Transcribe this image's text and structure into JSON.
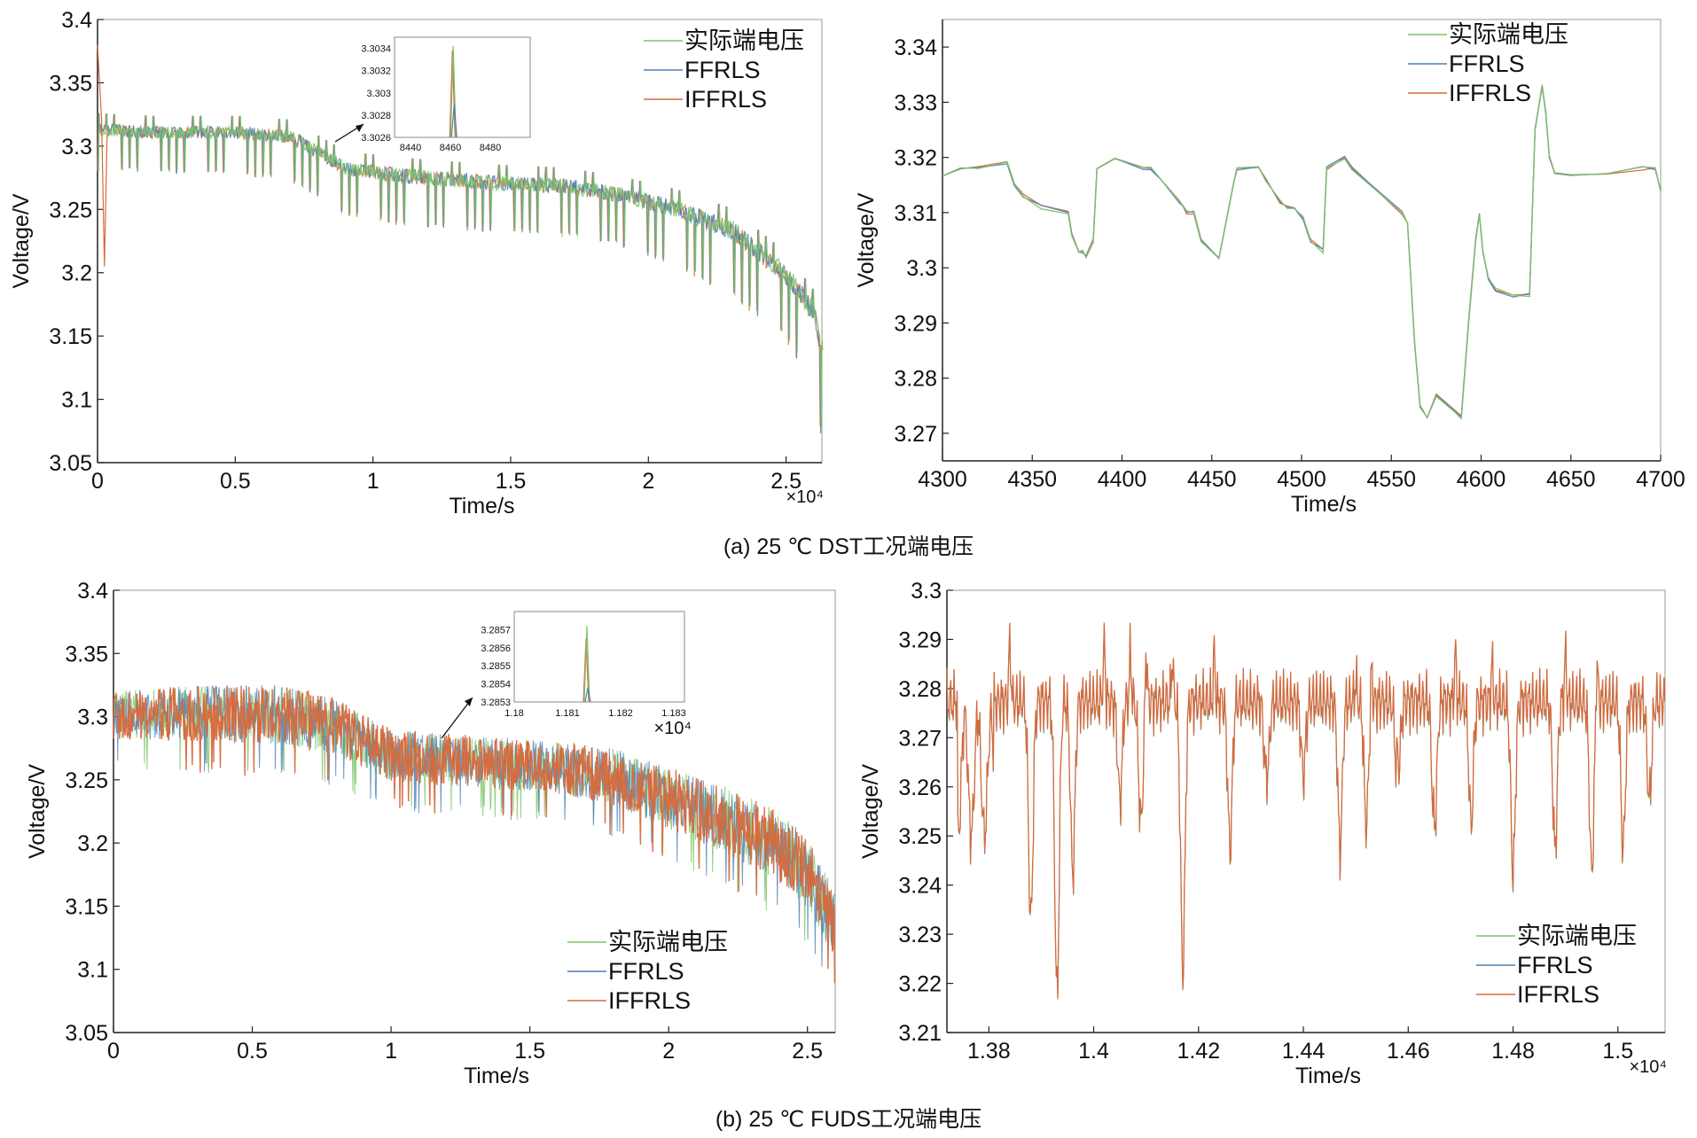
{
  "colors": {
    "measured": "#7cc46a",
    "ffrls": "#4f7fb6",
    "iffrls": "#d7693a",
    "axis": "#222222",
    "frame": "#999999"
  },
  "captions": {
    "a": "(a) 25 ℃ DST工况端电压",
    "b": "(b) 25 ℃ FUDS工况端电压"
  },
  "legend_labels": [
    "实际端电压",
    "FFRLS",
    "IFFRLS"
  ],
  "chart_data": [
    {
      "id": "dst-full",
      "type": "line",
      "xlabel": "Time/s",
      "ylabel": "Voltage/V",
      "xlim": [
        0,
        26300
      ],
      "ylim": [
        3.05,
        3.4
      ],
      "x_multiplier": "×10⁴",
      "x_ticks": [
        0,
        5000,
        10000,
        15000,
        20000,
        25000
      ],
      "x_tick_labels": [
        "0",
        "0.5",
        "1",
        "1.5",
        "2",
        "2.5"
      ],
      "y_ticks": [
        3.05,
        3.1,
        3.15,
        3.2,
        3.25,
        3.3,
        3.35,
        3.4
      ],
      "y_tick_labels": [
        "3.05",
        "3.1",
        "3.15",
        "3.2",
        "3.25",
        "3.3",
        "3.35",
        "3.4"
      ],
      "legend": [
        "实际端电压",
        "FFRLS",
        "IFFRLS"
      ],
      "legend_position": "top-right",
      "series_envelope": {
        "x": [
          0,
          2000,
          5000,
          7000,
          9000,
          11000,
          14000,
          17000,
          19000,
          21000,
          23000,
          25000,
          26000,
          26300
        ],
        "upper": [
          3.32,
          3.318,
          3.318,
          3.315,
          3.29,
          3.285,
          3.28,
          3.277,
          3.27,
          3.26,
          3.245,
          3.21,
          3.18,
          3.15
        ],
        "lower": [
          3.28,
          3.278,
          3.277,
          3.272,
          3.245,
          3.237,
          3.232,
          3.228,
          3.22,
          3.205,
          3.18,
          3.145,
          3.11,
          3.06
        ]
      },
      "inset": {
        "xlim": [
          8432,
          8500
        ],
        "ylim": [
          3.3026,
          3.3035
        ],
        "x_ticks": [
          8440,
          8460,
          8480
        ],
        "x_tick_labels": [
          "8440",
          "8460",
          "8480"
        ],
        "y_ticks": [
          3.3026,
          3.3028,
          3.303,
          3.3032,
          3.3034
        ],
        "y_tick_labels": [
          "3.3026",
          "3.3028",
          "3.303",
          "3.3032",
          "3.3034"
        ]
      }
    },
    {
      "id": "dst-zoom",
      "type": "line",
      "xlabel": "Time/s",
      "ylabel": "Voltage/V",
      "xlim": [
        4300,
        4700
      ],
      "ylim": [
        3.265,
        3.345
      ],
      "x_ticks": [
        4300,
        4350,
        4400,
        4450,
        4500,
        4550,
        4600,
        4650,
        4700
      ],
      "x_tick_labels": [
        "4300",
        "4350",
        "4400",
        "4450",
        "4500",
        "4550",
        "4600",
        "4650",
        "4700"
      ],
      "y_ticks": [
        3.27,
        3.28,
        3.29,
        3.3,
        3.31,
        3.32,
        3.33,
        3.34
      ],
      "y_tick_labels": [
        "3.27",
        "3.28",
        "3.29",
        "3.3",
        "3.31",
        "3.32",
        "3.33",
        "3.34"
      ],
      "legend": [
        "实际端电压",
        "FFRLS",
        "IFFRLS"
      ],
      "legend_position": "top-right",
      "series": [
        {
          "name": "实际端电压",
          "x": [
            4300,
            4310,
            4320,
            4336,
            4340,
            4345,
            4355,
            4370,
            4372,
            4376,
            4378,
            4380,
            4384,
            4386,
            4396,
            4412,
            4416,
            4422,
            4432,
            4434,
            4436,
            4440,
            4444,
            4454,
            4462,
            4464,
            4476,
            4480,
            4488,
            4492,
            4496,
            4501,
            4505,
            4512,
            4514,
            4524,
            4528,
            4556,
            4559,
            4563,
            4566,
            4570,
            4575,
            4585,
            4589,
            4593,
            4597,
            4599,
            4601,
            4604,
            4608,
            4618,
            4627,
            4630,
            4634,
            4636,
            4638,
            4641,
            4650,
            4670,
            4690,
            4697,
            4700
          ],
          "y": [
            3.317,
            3.318,
            3.318,
            3.319,
            3.315,
            3.313,
            3.311,
            3.31,
            3.306,
            3.303,
            3.303,
            3.302,
            3.305,
            3.318,
            3.32,
            3.318,
            3.318,
            3.316,
            3.312,
            3.311,
            3.31,
            3.31,
            3.305,
            3.302,
            3.315,
            3.318,
            3.318,
            3.316,
            3.312,
            3.311,
            3.311,
            3.309,
            3.305,
            3.303,
            3.318,
            3.32,
            3.318,
            3.31,
            3.308,
            3.286,
            3.275,
            3.273,
            3.277,
            3.274,
            3.273,
            3.29,
            3.305,
            3.31,
            3.303,
            3.298,
            3.296,
            3.295,
            3.295,
            3.325,
            3.333,
            3.328,
            3.32,
            3.317,
            3.317,
            3.317,
            3.318,
            3.318,
            3.314
          ]
        },
        {
          "name": "FFRLS",
          "x": [
            4300,
            4310,
            4320,
            4336,
            4340,
            4345,
            4355,
            4370,
            4372,
            4376,
            4378,
            4380,
            4384,
            4386,
            4396,
            4412,
            4416,
            4422,
            4432,
            4434,
            4436,
            4440,
            4444,
            4454,
            4462,
            4464,
            4476,
            4480,
            4488,
            4492,
            4496,
            4501,
            4505,
            4512,
            4514,
            4524,
            4528,
            4556,
            4559,
            4563,
            4566,
            4570,
            4575,
            4585,
            4589,
            4593,
            4597,
            4599,
            4601,
            4604,
            4608,
            4618,
            4627,
            4630,
            4634,
            4636,
            4638,
            4641,
            4650,
            4670,
            4690,
            4697,
            4700
          ],
          "y": [
            3.317,
            3.318,
            3.318,
            3.319,
            3.315,
            3.313,
            3.311,
            3.31,
            3.306,
            3.303,
            3.303,
            3.302,
            3.305,
            3.318,
            3.32,
            3.318,
            3.318,
            3.316,
            3.312,
            3.311,
            3.31,
            3.31,
            3.305,
            3.302,
            3.315,
            3.318,
            3.318,
            3.316,
            3.312,
            3.311,
            3.311,
            3.309,
            3.305,
            3.303,
            3.318,
            3.32,
            3.318,
            3.31,
            3.308,
            3.286,
            3.275,
            3.273,
            3.277,
            3.274,
            3.273,
            3.29,
            3.305,
            3.31,
            3.303,
            3.298,
            3.296,
            3.295,
            3.295,
            3.325,
            3.333,
            3.328,
            3.32,
            3.317,
            3.317,
            3.317,
            3.318,
            3.318,
            3.314
          ]
        },
        {
          "name": "IFFRLS",
          "x": [
            4300,
            4310,
            4320,
            4336,
            4340,
            4345,
            4355,
            4370,
            4372,
            4376,
            4378,
            4380,
            4384,
            4386,
            4396,
            4412,
            4416,
            4422,
            4432,
            4434,
            4436,
            4440,
            4444,
            4454,
            4462,
            4464,
            4476,
            4480,
            4488,
            4492,
            4496,
            4501,
            4505,
            4512,
            4514,
            4524,
            4528,
            4556,
            4559,
            4563,
            4566,
            4570,
            4575,
            4585,
            4589,
            4593,
            4597,
            4599,
            4601,
            4604,
            4608,
            4618,
            4627,
            4630,
            4634,
            4636,
            4638,
            4641,
            4650,
            4670,
            4690,
            4697,
            4700
          ],
          "y": [
            3.317,
            3.318,
            3.318,
            3.319,
            3.315,
            3.313,
            3.311,
            3.31,
            3.306,
            3.303,
            3.303,
            3.302,
            3.305,
            3.318,
            3.32,
            3.318,
            3.318,
            3.316,
            3.312,
            3.311,
            3.31,
            3.31,
            3.305,
            3.302,
            3.315,
            3.318,
            3.318,
            3.316,
            3.312,
            3.311,
            3.311,
            3.309,
            3.305,
            3.303,
            3.318,
            3.32,
            3.318,
            3.31,
            3.308,
            3.286,
            3.275,
            3.273,
            3.277,
            3.274,
            3.273,
            3.29,
            3.305,
            3.31,
            3.303,
            3.298,
            3.296,
            3.295,
            3.295,
            3.325,
            3.333,
            3.328,
            3.32,
            3.317,
            3.317,
            3.317,
            3.318,
            3.318,
            3.314
          ]
        }
      ]
    },
    {
      "id": "fuds-full",
      "type": "line",
      "xlabel": "Time/s",
      "ylabel": "Voltage/V",
      "xlim": [
        0,
        26000
      ],
      "ylim": [
        3.05,
        3.4
      ],
      "x_ticks": [
        0,
        5000,
        10000,
        15000,
        20000,
        25000
      ],
      "x_tick_labels": [
        "0",
        "0.5",
        "1",
        "1.5",
        "2",
        "2.5"
      ],
      "y_ticks": [
        3.05,
        3.1,
        3.15,
        3.2,
        3.25,
        3.3,
        3.35,
        3.4
      ],
      "y_tick_labels": [
        "3.05",
        "3.1",
        "3.15",
        "3.2",
        "3.25",
        "3.3",
        "3.35",
        "3.4"
      ],
      "legend": [
        "实际端电压",
        "FFRLS",
        "IFFRLS"
      ],
      "legend_position": "bottom-right",
      "series_envelope": {
        "x": [
          0,
          3000,
          6000,
          8000,
          10000,
          13000,
          16000,
          18000,
          20000,
          22000,
          24000,
          25000,
          26000
        ],
        "upper": [
          3.32,
          3.325,
          3.325,
          3.315,
          3.29,
          3.285,
          3.28,
          3.275,
          3.26,
          3.245,
          3.225,
          3.205,
          3.16
        ],
        "lower": [
          3.27,
          3.265,
          3.26,
          3.255,
          3.235,
          3.23,
          3.225,
          3.215,
          3.195,
          3.175,
          3.15,
          3.13,
          3.09
        ]
      },
      "inset": {
        "xlim": [
          11800,
          11832
        ],
        "ylim": [
          3.2853,
          3.2858
        ],
        "x_multiplier": "×10⁴",
        "x_ticks": [
          11800,
          11810,
          11820,
          11830
        ],
        "x_tick_labels": [
          "1.18",
          "1.181",
          "1.182",
          "1.183"
        ],
        "y_ticks": [
          3.2853,
          3.2854,
          3.2855,
          3.2856,
          3.2857
        ],
        "y_tick_labels": [
          "3.2853",
          "3.2854",
          "3.2855",
          "3.2856",
          "3.2857"
        ]
      }
    },
    {
      "id": "fuds-zoom",
      "type": "line",
      "xlabel": "Time/s",
      "ylabel": "Voltage/V",
      "xlim": [
        13720,
        15090
      ],
      "ylim": [
        3.21,
        3.3
      ],
      "x_multiplier": "×10⁴",
      "x_ticks": [
        13800,
        14000,
        14200,
        14400,
        14600,
        14800,
        15000
      ],
      "x_tick_labels": [
        "1.38",
        "1.4",
        "1.42",
        "1.44",
        "1.46",
        "1.48",
        "1.5"
      ],
      "y_ticks": [
        3.21,
        3.22,
        3.23,
        3.24,
        3.25,
        3.26,
        3.27,
        3.28,
        3.29,
        3.3
      ],
      "y_tick_labels": [
        "3.21",
        "3.22",
        "3.23",
        "3.24",
        "3.25",
        "3.26",
        "3.27",
        "3.28",
        "3.29",
        "3.3"
      ],
      "legend": [
        "实际端电压",
        "FFRLS",
        "IFFRLS"
      ],
      "legend_position": "bottom-right",
      "series_summary": "FUDS cycles: voltage mostly 3.25–3.28 V with spikes to ~3.293 V and dips down to ~3.214 V near 1.393×10⁴ s"
    }
  ]
}
